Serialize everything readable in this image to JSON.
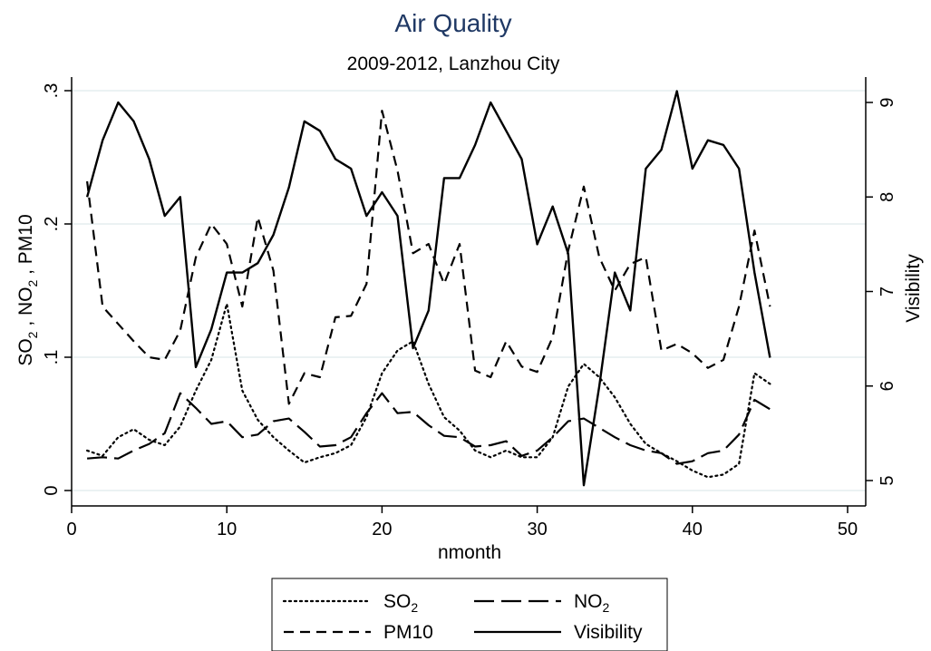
{
  "chart_data": {
    "type": "line",
    "title": "Air Quality",
    "subtitle": "2009-2012, Lanzhou City",
    "xlabel": "nmonth",
    "ylabel_left_parts": [
      "SO",
      "2",
      " , NO",
      "2",
      " , PM10"
    ],
    "ylabel_right": "Visibility",
    "xlim": [
      0,
      50
    ],
    "ylim_left": [
      0,
      0.3
    ],
    "ylim_right": [
      4.9,
      9.1
    ],
    "x_ticks": [
      "0",
      "10",
      "20",
      "30",
      "40",
      "50"
    ],
    "y_left_ticks": [
      "0",
      ".1",
      ".2",
      ".3"
    ],
    "y_right_ticks": [
      "5",
      "6",
      "7",
      "8",
      "9"
    ],
    "x": [
      1,
      2,
      3,
      4,
      5,
      6,
      7,
      8,
      9,
      10,
      11,
      12,
      13,
      14,
      15,
      16,
      17,
      18,
      19,
      20,
      21,
      22,
      23,
      24,
      25,
      26,
      27,
      28,
      29,
      30,
      31,
      32,
      33,
      34,
      35,
      36,
      37,
      38,
      39,
      40,
      41,
      42,
      43,
      44,
      45
    ],
    "series": [
      {
        "name": "SO2",
        "axis": "left",
        "style": "dotted",
        "values": [
          0.03,
          0.026,
          0.04,
          0.046,
          0.038,
          0.034,
          0.048,
          0.075,
          0.098,
          0.14,
          0.075,
          0.053,
          0.04,
          0.03,
          0.021,
          0.025,
          0.028,
          0.034,
          0.055,
          0.088,
          0.105,
          0.112,
          0.08,
          0.055,
          0.045,
          0.03,
          0.025,
          0.03,
          0.025,
          0.025,
          0.04,
          0.078,
          0.095,
          0.085,
          0.07,
          0.05,
          0.035,
          0.028,
          0.022,
          0.015,
          0.01,
          0.012,
          0.02,
          0.088,
          0.08
        ]
      },
      {
        "name": "NO2",
        "axis": "left",
        "style": "longdash",
        "values": [
          0.024,
          0.025,
          0.024,
          0.03,
          0.035,
          0.043,
          0.073,
          0.062,
          0.05,
          0.052,
          0.04,
          0.042,
          0.052,
          0.054,
          0.044,
          0.033,
          0.034,
          0.04,
          0.058,
          0.073,
          0.058,
          0.059,
          0.049,
          0.041,
          0.04,
          0.033,
          0.034,
          0.037,
          0.026,
          0.03,
          0.04,
          0.052,
          0.054,
          0.047,
          0.04,
          0.034,
          0.03,
          0.028,
          0.02,
          0.022,
          0.028,
          0.03,
          0.042,
          0.068,
          0.061
        ]
      },
      {
        "name": "PM10",
        "axis": "left",
        "style": "dashed",
        "values": [
          0.232,
          0.138,
          0.125,
          0.112,
          0.1,
          0.098,
          0.12,
          0.175,
          0.2,
          0.185,
          0.138,
          0.205,
          0.165,
          0.065,
          0.088,
          0.085,
          0.13,
          0.131,
          0.155,
          0.285,
          0.24,
          0.178,
          0.185,
          0.155,
          0.185,
          0.09,
          0.085,
          0.112,
          0.093,
          0.089,
          0.115,
          0.18,
          0.228,
          0.175,
          0.15,
          0.17,
          0.175,
          0.105,
          0.11,
          0.103,
          0.092,
          0.098,
          0.138,
          0.195,
          0.138
        ]
      },
      {
        "name": "Visibility",
        "axis": "right",
        "style": "solid",
        "values": [
          8.0,
          8.6,
          9.0,
          8.8,
          8.4,
          7.8,
          8.0,
          6.2,
          6.6,
          7.2,
          7.2,
          7.3,
          7.6,
          8.1,
          8.8,
          8.7,
          8.4,
          8.3,
          7.8,
          8.05,
          7.8,
          6.4,
          6.8,
          8.2,
          8.2,
          8.55,
          9.0,
          8.7,
          8.4,
          7.5,
          7.9,
          7.4,
          4.95,
          6.0,
          7.2,
          6.8,
          8.3,
          8.5,
          9.12,
          8.3,
          8.6,
          8.55,
          8.3,
          7.2,
          6.3
        ]
      }
    ],
    "legend": {
      "placement": "bottom",
      "columns": 2,
      "items": [
        {
          "name": "SO2",
          "label": "SO",
          "sub": "2",
          "style": "dotted"
        },
        {
          "name": "NO2",
          "label": "NO",
          "sub": "2",
          "style": "longdash"
        },
        {
          "name": "PM10",
          "label": "PM10",
          "sub": "",
          "style": "dashed"
        },
        {
          "name": "Visibility",
          "label": "Visibility",
          "sub": "",
          "style": "solid"
        }
      ]
    },
    "grid": true,
    "colors": {
      "title": "#1f3864",
      "grid": "#dfe9ec",
      "lines": "#000000"
    }
  }
}
